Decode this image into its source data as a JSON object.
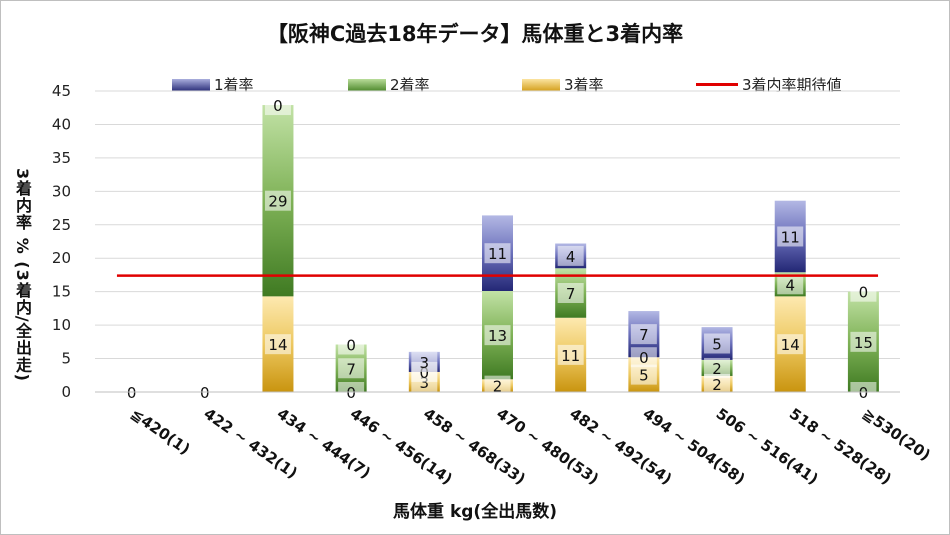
{
  "chart_data": {
    "type": "bar",
    "stacked": true,
    "title": "【阪神C過去18年データ】馬体重と3着内率",
    "xlabel": "馬体重 kg(全出馬数)",
    "ylabel": "3着内率 % (3着内/全出走)",
    "ylim": [
      0,
      45
    ],
    "yticks": [
      0,
      5,
      10,
      15,
      20,
      25,
      30,
      35,
      40,
      45
    ],
    "grid": true,
    "legend_position": "top",
    "categories": [
      "≦420(1)",
      "422 ~ 432(1)",
      "434 ~ 444(7)",
      "446 ~ 456(14)",
      "458 ~ 468(33)",
      "470 ~ 480(53)",
      "482 ~ 492(54)",
      "494 ~ 504(58)",
      "506 ~ 516(41)",
      "518 ~ 528(28)",
      "≧530(20)"
    ],
    "series": [
      {
        "name": "3着率",
        "color": "#d4a01c",
        "values": [
          0,
          0,
          14.3,
          0,
          3.0,
          1.9,
          11.1,
          5.2,
          2.4,
          14.3,
          0
        ]
      },
      {
        "name": "2着率",
        "color": "#4f8a2e",
        "values": [
          0,
          0,
          28.6,
          7.1,
          0,
          13.2,
          7.4,
          0,
          2.4,
          3.6,
          15.0
        ]
      },
      {
        "name": "1着率",
        "color": "#2b2f7a",
        "values": [
          0,
          0,
          0,
          0,
          3.0,
          11.3,
          3.7,
          6.9,
          4.9,
          10.7,
          0
        ]
      }
    ],
    "data_labels": {
      "3着率": [
        "0",
        "0",
        "14",
        "0",
        "3",
        "2",
        "11",
        "5",
        "2",
        "14",
        "0"
      ],
      "2着率": [
        "",
        "",
        "29",
        "7",
        "0",
        "13",
        "7",
        "0",
        "2",
        "4",
        "15"
      ],
      "1着率": [
        "",
        "",
        "0",
        "0",
        "3",
        "11",
        "4",
        "7",
        "5",
        "11",
        "0"
      ]
    },
    "reference_line": {
      "name": "3着内率期待値",
      "value": 17.4,
      "color": "#e00000"
    }
  }
}
